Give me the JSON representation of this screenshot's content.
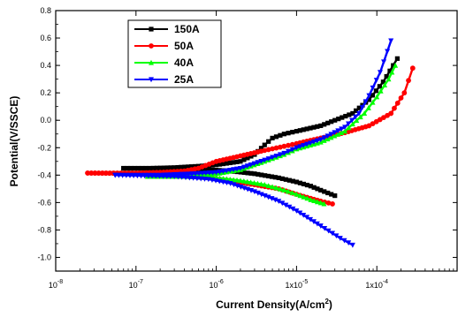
{
  "chart_data": {
    "type": "line",
    "xlabel_main": "Current Density(A/cm",
    "xlabel_sup": "2",
    "xlabel_end": ")",
    "ylabel": "Potential(V/SSCE)",
    "x_scale": "log",
    "xlim": [
      1e-08,
      0.001
    ],
    "ylim": [
      -1.1,
      0.8
    ],
    "x_ticks": [
      {
        "value": 1e-08,
        "label": "10"
      },
      {
        "value": 1e-07,
        "label": "10"
      },
      {
        "value": 1e-06,
        "label": "10"
      },
      {
        "value": 1e-05,
        "label": "1x10"
      },
      {
        "value": 0.0001,
        "label": "1x10"
      }
    ],
    "x_tick_exponents": [
      "-8",
      "-7",
      "-6",
      "-5",
      "-4"
    ],
    "y_ticks": [
      {
        "value": 0.8,
        "label": "0.8"
      },
      {
        "value": 0.6,
        "label": "0.6"
      },
      {
        "value": 0.4,
        "label": "0.4"
      },
      {
        "value": 0.2,
        "label": "0.2"
      },
      {
        "value": 0.0,
        "label": "0.0"
      },
      {
        "value": -0.2,
        "label": "-0.2"
      },
      {
        "value": -0.4,
        "label": "-0.4"
      },
      {
        "value": -0.6,
        "label": "-0.6"
      },
      {
        "value": -0.8,
        "label": "-0.8"
      },
      {
        "value": -1.0,
        "label": "-1.0"
      }
    ],
    "legend_position": "top-left",
    "series": [
      {
        "name": "150A",
        "color": "#000000",
        "marker": "square",
        "anodic": [
          [
            7e-08,
            -0.35
          ],
          [
            1.5e-07,
            -0.35
          ],
          [
            3e-07,
            -0.345
          ],
          [
            6e-07,
            -0.335
          ],
          [
            1e-06,
            -0.325
          ],
          [
            2e-06,
            -0.3
          ],
          [
            3e-06,
            -0.25
          ],
          [
            4e-06,
            -0.18
          ],
          [
            5e-06,
            -0.13
          ],
          [
            7e-06,
            -0.1
          ],
          [
            1e-05,
            -0.08
          ],
          [
            2e-05,
            -0.04
          ],
          [
            3e-05,
            0.0
          ],
          [
            5e-05,
            0.05
          ],
          [
            8e-05,
            0.15
          ],
          [
            0.00012,
            0.28
          ],
          [
            0.00016,
            0.4
          ],
          [
            0.00018,
            0.45
          ]
        ],
        "cathodic": [
          [
            7e-08,
            -0.35
          ],
          [
            3e-07,
            -0.35
          ],
          [
            8e-07,
            -0.36
          ],
          [
            1.5e-06,
            -0.37
          ],
          [
            3e-06,
            -0.39
          ],
          [
            6e-06,
            -0.42
          ],
          [
            1e-05,
            -0.45
          ],
          [
            1.5e-05,
            -0.48
          ],
          [
            2e-05,
            -0.51
          ],
          [
            3e-05,
            -0.55
          ]
        ]
      },
      {
        "name": "50A",
        "color": "#ff0000",
        "marker": "circle",
        "anodic": [
          [
            2.5e-08,
            -0.385
          ],
          [
            1e-07,
            -0.385
          ],
          [
            2e-07,
            -0.38
          ],
          [
            4e-07,
            -0.37
          ],
          [
            6e-07,
            -0.35
          ],
          [
            1e-06,
            -0.3
          ],
          [
            2e-06,
            -0.26
          ],
          [
            4e-06,
            -0.22
          ],
          [
            7e-06,
            -0.19
          ],
          [
            1e-05,
            -0.17
          ],
          [
            2e-05,
            -0.13
          ],
          [
            4e-05,
            -0.09
          ],
          [
            8e-05,
            -0.04
          ],
          [
            0.00015,
            0.05
          ],
          [
            0.00022,
            0.2
          ],
          [
            0.00028,
            0.38
          ]
        ],
        "cathodic": [
          [
            2.5e-08,
            -0.385
          ],
          [
            2e-07,
            -0.39
          ],
          [
            6e-07,
            -0.41
          ],
          [
            1.5e-06,
            -0.44
          ],
          [
            3e-06,
            -0.47
          ],
          [
            6e-06,
            -0.5
          ],
          [
            1e-05,
            -0.54
          ],
          [
            1.5e-05,
            -0.57
          ],
          [
            2e-05,
            -0.59
          ],
          [
            2.8e-05,
            -0.61
          ]
        ]
      },
      {
        "name": "40A",
        "color": "#00ff00",
        "marker": "triangle-up",
        "anodic": [
          [
            1.4e-07,
            -0.41
          ],
          [
            3e-07,
            -0.41
          ],
          [
            6e-07,
            -0.4
          ],
          [
            1e-06,
            -0.39
          ],
          [
            2e-06,
            -0.36
          ],
          [
            4e-06,
            -0.3
          ],
          [
            7e-06,
            -0.25
          ],
          [
            1e-05,
            -0.21
          ],
          [
            2e-05,
            -0.16
          ],
          [
            4e-05,
            -0.08
          ],
          [
            7e-05,
            0.05
          ],
          [
            0.0001,
            0.17
          ],
          [
            0.00014,
            0.3
          ],
          [
            0.00017,
            0.4
          ]
        ],
        "cathodic": [
          [
            1.4e-07,
            -0.41
          ],
          [
            4e-07,
            -0.41
          ],
          [
            1e-06,
            -0.42
          ],
          [
            2e-06,
            -0.44
          ],
          [
            4e-06,
            -0.47
          ],
          [
            7e-06,
            -0.51
          ],
          [
            1e-05,
            -0.54
          ],
          [
            1.5e-05,
            -0.58
          ],
          [
            2.2e-05,
            -0.61
          ]
        ]
      },
      {
        "name": "25A",
        "color": "#0000ff",
        "marker": "triangle-down",
        "anodic": [
          [
            5.5e-08,
            -0.4
          ],
          [
            2e-07,
            -0.4
          ],
          [
            5e-07,
            -0.39
          ],
          [
            1e-06,
            -0.38
          ],
          [
            2e-06,
            -0.35
          ],
          [
            4e-06,
            -0.29
          ],
          [
            7e-06,
            -0.24
          ],
          [
            1e-05,
            -0.2
          ],
          [
            2e-05,
            -0.14
          ],
          [
            4e-05,
            -0.05
          ],
          [
            6e-05,
            0.05
          ],
          [
            8e-05,
            0.18
          ],
          [
            0.00011,
            0.35
          ],
          [
            0.00015,
            0.58
          ]
        ],
        "cathodic": [
          [
            5.5e-08,
            -0.4
          ],
          [
            3e-07,
            -0.41
          ],
          [
            8e-07,
            -0.43
          ],
          [
            1.5e-06,
            -0.46
          ],
          [
            3e-06,
            -0.52
          ],
          [
            6e-06,
            -0.59
          ],
          [
            1e-05,
            -0.66
          ],
          [
            2e-05,
            -0.77
          ],
          [
            3.5e-05,
            -0.86
          ],
          [
            5e-05,
            -0.91
          ]
        ]
      }
    ]
  }
}
